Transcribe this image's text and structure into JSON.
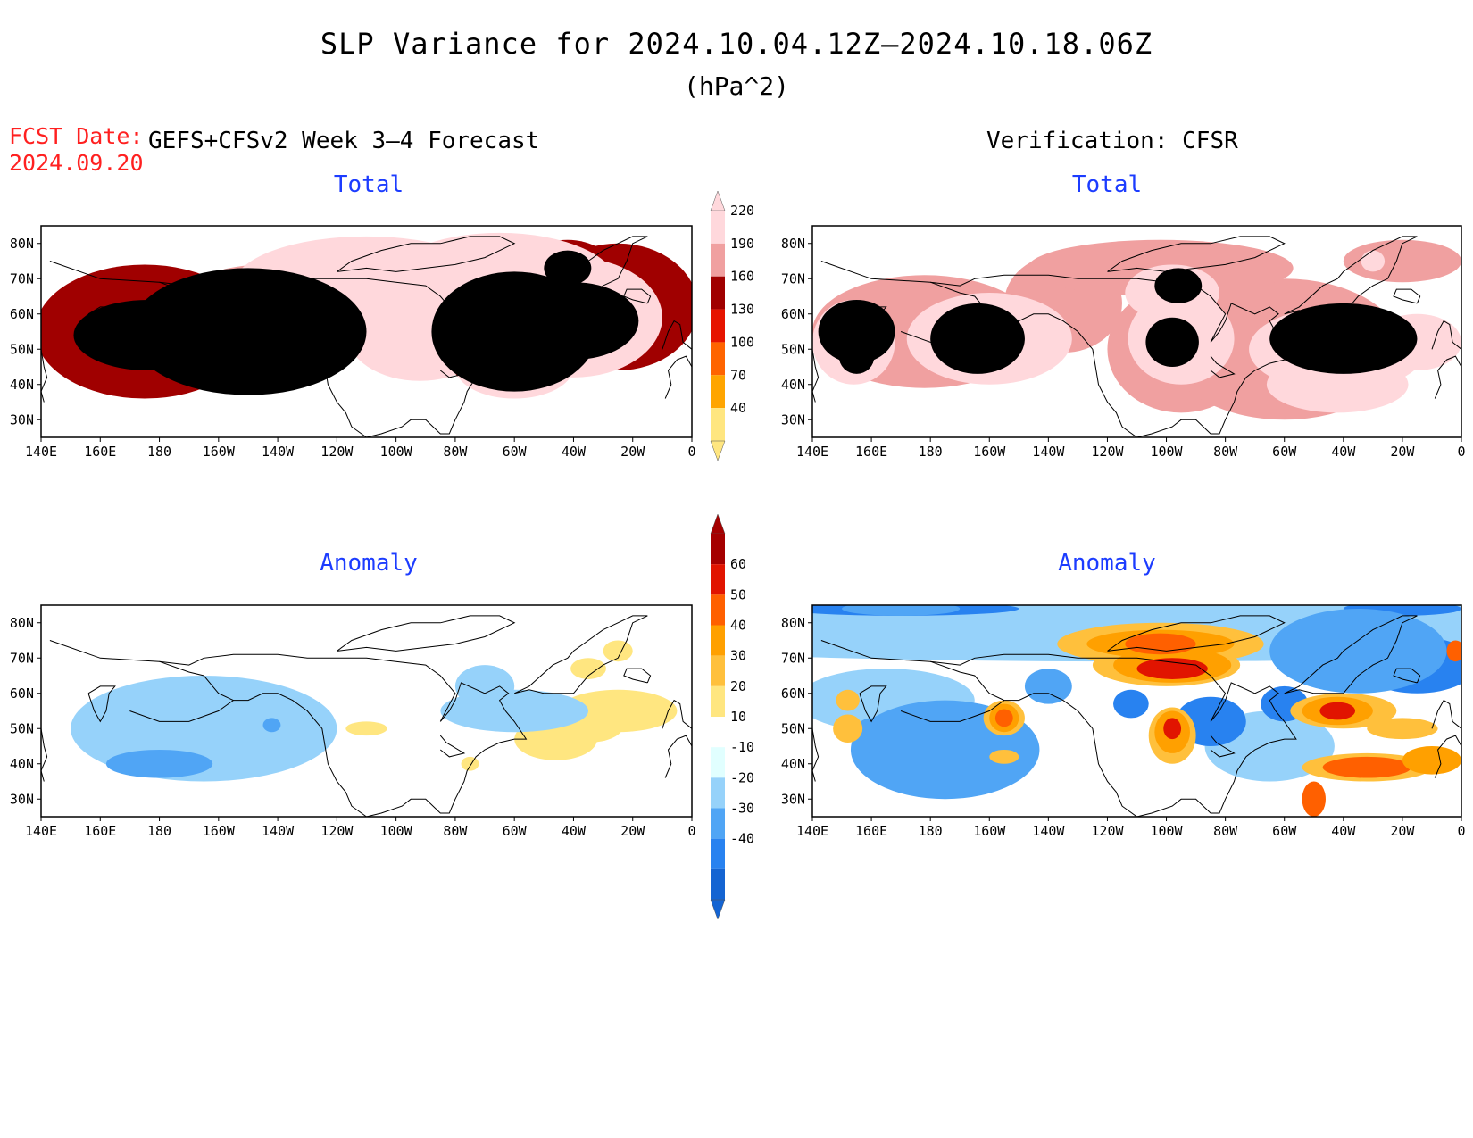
{
  "header": {
    "title": "SLP Variance for 2024.10.04.12Z–2024.10.18.06Z",
    "units": "(hPa^2)",
    "fcst_label": "FCST Date:",
    "fcst_date": "2024.09.20",
    "forecast_heading": "GEFS+CFSv2 Week 3–4 Forecast",
    "verification_heading": "Verification: CFSR"
  },
  "panels": [
    {
      "id": "forecast-total",
      "title": "Total"
    },
    {
      "id": "verification-total",
      "title": "Total"
    },
    {
      "id": "forecast-anomaly",
      "title": "Anomaly"
    },
    {
      "id": "verification-anomaly",
      "title": "Anomaly"
    }
  ],
  "axes": {
    "lat_labels": [
      "80N",
      "70N",
      "60N",
      "50N",
      "40N",
      "30N"
    ],
    "lat_values": [
      80,
      70,
      60,
      50,
      40,
      30
    ],
    "lat_range": [
      25,
      85
    ],
    "lon_labels": [
      "140E",
      "160E",
      "180",
      "160W",
      "140W",
      "120W",
      "100W",
      "80W",
      "60W",
      "40W",
      "20W",
      "0"
    ],
    "lon_values": [
      140,
      160,
      180,
      200,
      220,
      240,
      260,
      280,
      300,
      320,
      340,
      360
    ],
    "lon_range": [
      140,
      360
    ]
  },
  "colorbars": {
    "total": {
      "levels": [
        "40",
        "70",
        "100",
        "130",
        "160",
        "190",
        "220"
      ],
      "colors": [
        "#ffe680",
        "#ffa500",
        "#ff6400",
        "#e61400",
        "#a00000",
        "#f0a0a0",
        "#ffd8dc"
      ],
      "extends": "both"
    },
    "anomaly": {
      "levels": [
        "-40",
        "-30",
        "-20",
        "-10",
        "10",
        "20",
        "30",
        "40",
        "50",
        "60"
      ],
      "colors": [
        "#1464d2",
        "#2882f0",
        "#50a5f5",
        "#96d2fa",
        "#e1ffff",
        "#ffffff",
        "#ffe680",
        "#ffc03c",
        "#ffa000",
        "#ff6000",
        "#e11400",
        "#a50000"
      ],
      "extends": "both"
    }
  },
  "chart_data": [
    {
      "type": "heatmap",
      "panel": "forecast-total",
      "quantity": "SLP variance",
      "units": "hPa^2",
      "xlim": [
        140,
        360
      ],
      "ylim": [
        25,
        85
      ],
      "features": [
        {
          "lon": 177,
          "lat": 54,
          "rx": 25,
          "ry": 8,
          "level": 1
        },
        {
          "lon": 177,
          "lat": 53,
          "rx": 23,
          "ry": 12,
          "level": 2
        },
        {
          "lon": 180,
          "lat": 54,
          "rx": 29,
          "ry": 16,
          "level": 3
        },
        {
          "lon": 175,
          "lat": 55,
          "rx": 37,
          "ry": 19,
          "level": 4
        },
        {
          "lon": 215,
          "lat": 56,
          "rx": 35,
          "ry": 18,
          "level": 5
        },
        {
          "lon": 245,
          "lat": 62,
          "rx": 35,
          "ry": 14,
          "level": 5
        },
        {
          "lon": 265,
          "lat": 57,
          "rx": 25,
          "ry": 13,
          "level": 4
        },
        {
          "lon": 300,
          "lat": 55,
          "rx": 27,
          "ry": 18,
          "level": 4
        },
        {
          "lon": 335,
          "lat": 62,
          "rx": 27,
          "ry": 18,
          "level": 4
        },
        {
          "lon": 318,
          "lat": 73,
          "rx": 15,
          "ry": 8,
          "level": 4
        },
        {
          "lon": 250,
          "lat": 68,
          "rx": 45,
          "ry": 14,
          "level": 6
        },
        {
          "lon": 295,
          "lat": 68,
          "rx": 40,
          "ry": 15,
          "level": 6
        },
        {
          "lon": 320,
          "lat": 59,
          "rx": 30,
          "ry": 17,
          "level": 6
        },
        {
          "lon": 268,
          "lat": 55,
          "rx": 25,
          "ry": 14,
          "level": 6
        },
        {
          "lon": 300,
          "lat": 45,
          "rx": 20,
          "ry": 9,
          "level": 6
        },
        {
          "lon": 210,
          "lat": 55,
          "rx": 40,
          "ry": 18,
          "level": 7
        },
        {
          "lon": 300,
          "lat": 55,
          "rx": 28,
          "ry": 17,
          "level": 7
        },
        {
          "lon": 320,
          "lat": 58,
          "rx": 22,
          "ry": 11,
          "level": 7
        },
        {
          "lon": 176,
          "lat": 54,
          "rx": 25,
          "ry": 10,
          "level": 8
        },
        {
          "lon": 318,
          "lat": 73,
          "rx": 8,
          "ry": 5,
          "level": 8
        },
        {
          "lon": 318,
          "lat": 73,
          "rx": 4,
          "ry": 3,
          "level": 9
        }
      ]
    },
    {
      "type": "heatmap",
      "panel": "verification-total",
      "quantity": "SLP variance",
      "units": "hPa^2",
      "xlim": [
        140,
        360
      ],
      "ylim": [
        25,
        85
      ],
      "features": [
        {
          "lon": 178,
          "lat": 55,
          "rx": 38,
          "ry": 16,
          "level": 5
        },
        {
          "lon": 225,
          "lat": 63,
          "rx": 20,
          "ry": 14,
          "level": 5
        },
        {
          "lon": 265,
          "lat": 50,
          "rx": 25,
          "ry": 18,
          "level": 5
        },
        {
          "lon": 300,
          "lat": 50,
          "rx": 40,
          "ry": 20,
          "level": 5
        },
        {
          "lon": 258,
          "lat": 73,
          "rx": 45,
          "ry": 8,
          "level": 5
        },
        {
          "lon": 340,
          "lat": 75,
          "rx": 20,
          "ry": 6,
          "level": 5
        },
        {
          "lon": 154,
          "lat": 52,
          "rx": 14,
          "ry": 12,
          "level": 6
        },
        {
          "lon": 200,
          "lat": 53,
          "rx": 28,
          "ry": 13,
          "level": 6
        },
        {
          "lon": 265,
          "lat": 53,
          "rx": 18,
          "ry": 13,
          "level": 6
        },
        {
          "lon": 262,
          "lat": 66,
          "rx": 16,
          "ry": 8,
          "level": 6
        },
        {
          "lon": 318,
          "lat": 50,
          "rx": 30,
          "ry": 12,
          "level": 6
        },
        {
          "lon": 318,
          "lat": 40,
          "rx": 24,
          "ry": 8,
          "level": 6
        },
        {
          "lon": 345,
          "lat": 52,
          "rx": 15,
          "ry": 8,
          "level": 6
        },
        {
          "lon": 330,
          "lat": 75,
          "rx": 4,
          "ry": 3,
          "level": 6
        },
        {
          "lon": 155,
          "lat": 55,
          "rx": 13,
          "ry": 9,
          "level": 7
        },
        {
          "lon": 196,
          "lat": 53,
          "rx": 16,
          "ry": 10,
          "level": 7
        },
        {
          "lon": 262,
          "lat": 52,
          "rx": 9,
          "ry": 7,
          "level": 7
        },
        {
          "lon": 320,
          "lat": 53,
          "rx": 25,
          "ry": 10,
          "level": 7
        },
        {
          "lon": 264,
          "lat": 68,
          "rx": 8,
          "ry": 5,
          "level": 7
        },
        {
          "lon": 155,
          "lat": 48,
          "rx": 6,
          "ry": 5,
          "level": 8
        },
        {
          "lon": 196,
          "lat": 53,
          "rx": 8,
          "ry": 6,
          "level": 8
        },
        {
          "lon": 261,
          "lat": 51,
          "rx": 4,
          "ry": 4,
          "level": 8
        },
        {
          "lon": 318,
          "lat": 54,
          "rx": 13,
          "ry": 6,
          "level": 8
        },
        {
          "lon": 316,
          "lat": 53,
          "rx": 5,
          "ry": 2,
          "level": 9
        },
        {
          "lon": 316,
          "lat": 53,
          "rx": 3,
          "ry": 1.5,
          "level": 10
        }
      ]
    },
    {
      "type": "heatmap",
      "panel": "forecast-anomaly",
      "quantity": "SLP variance anomaly",
      "units": "hPa^2",
      "xlim": [
        140,
        360
      ],
      "ylim": [
        25,
        85
      ],
      "features": [
        {
          "lon": 178,
          "lat": 55,
          "rx": 12,
          "ry": 5,
          "level": 6
        },
        {
          "lon": 176,
          "lat": 55,
          "rx": 8,
          "ry": 3.5,
          "level": 7
        },
        {
          "lon": 176,
          "lat": 55,
          "rx": 4,
          "ry": 2,
          "level": 8
        },
        {
          "lon": 335,
          "lat": 55,
          "rx": 20,
          "ry": 6,
          "level": 6
        },
        {
          "lon": 314,
          "lat": 47,
          "rx": 14,
          "ry": 6,
          "level": 6
        },
        {
          "lon": 325,
          "lat": 51,
          "rx": 12,
          "ry": 5,
          "level": 6
        },
        {
          "lon": 325,
          "lat": 67,
          "rx": 6,
          "ry": 3,
          "level": 6
        },
        {
          "lon": 335,
          "lat": 72,
          "rx": 5,
          "ry": 3,
          "level": 6
        },
        {
          "lon": 250,
          "lat": 50,
          "rx": 7,
          "ry": 2,
          "level": 6
        },
        {
          "lon": 285,
          "lat": 40,
          "rx": 3,
          "ry": 2,
          "level": 6
        },
        {
          "lon": 195,
          "lat": 50,
          "rx": 45,
          "ry": 15,
          "level": 3
        },
        {
          "lon": 290,
          "lat": 62,
          "rx": 10,
          "ry": 6,
          "level": 3
        },
        {
          "lon": 300,
          "lat": 55,
          "rx": 25,
          "ry": 6,
          "level": 3
        },
        {
          "lon": 180,
          "lat": 40,
          "rx": 18,
          "ry": 4,
          "level": 2
        },
        {
          "lon": 218,
          "lat": 51,
          "rx": 3,
          "ry": 2,
          "level": 2
        }
      ]
    },
    {
      "type": "heatmap",
      "panel": "verification-anomaly",
      "quantity": "SLP variance anomaly",
      "units": "hPa^2",
      "xlim": [
        140,
        360
      ],
      "ylim": [
        25,
        85
      ],
      "features": [
        {
          "lon": 250,
          "lat": 78,
          "rx": 220,
          "ry": 9,
          "level": 3
        },
        {
          "lon": 165,
          "lat": 58,
          "rx": 30,
          "ry": 9,
          "level": 3
        },
        {
          "lon": 295,
          "lat": 45,
          "rx": 22,
          "ry": 10,
          "level": 3
        },
        {
          "lon": 170,
          "lat": 84,
          "rx": 40,
          "ry": 2,
          "level": 1
        },
        {
          "lon": 170,
          "lat": 84,
          "rx": 20,
          "ry": 2,
          "level": 2
        },
        {
          "lon": 340,
          "lat": 84,
          "rx": 20,
          "ry": 2,
          "level": 1
        },
        {
          "lon": 325,
          "lat": 70,
          "rx": 20,
          "ry": 6,
          "level": 0
        },
        {
          "lon": 345,
          "lat": 68,
          "rx": 15,
          "ry": 5,
          "level": 0
        },
        {
          "lon": 325,
          "lat": 70,
          "rx": 26,
          "ry": 9,
          "level": 1
        },
        {
          "lon": 345,
          "lat": 68,
          "rx": 20,
          "ry": 8,
          "level": 1
        },
        {
          "lon": 325,
          "lat": 72,
          "rx": 30,
          "ry": 12,
          "level": 2
        },
        {
          "lon": 183,
          "lat": 44,
          "rx": 23,
          "ry": 10,
          "level": 0
        },
        {
          "lon": 183,
          "lat": 44,
          "rx": 28,
          "ry": 12,
          "level": 1
        },
        {
          "lon": 185,
          "lat": 44,
          "rx": 32,
          "ry": 14,
          "level": 2
        },
        {
          "lon": 275,
          "lat": 52,
          "rx": 8,
          "ry": 5,
          "level": 0
        },
        {
          "lon": 275,
          "lat": 52,
          "rx": 12,
          "ry": 7,
          "level": 1
        },
        {
          "lon": 248,
          "lat": 57,
          "rx": 6,
          "ry": 4,
          "level": 1
        },
        {
          "lon": 300,
          "lat": 57,
          "rx": 8,
          "ry": 5,
          "level": 1
        },
        {
          "lon": 220,
          "lat": 62,
          "rx": 8,
          "ry": 5,
          "level": 2
        },
        {
          "lon": 160,
          "lat": 48,
          "rx": 6,
          "ry": 5,
          "level": 2
        },
        {
          "lon": 258,
          "lat": 74,
          "rx": 35,
          "ry": 6,
          "level": 7
        },
        {
          "lon": 260,
          "lat": 68,
          "rx": 25,
          "ry": 6,
          "level": 7
        },
        {
          "lon": 258,
          "lat": 74,
          "rx": 25,
          "ry": 4,
          "level": 8
        },
        {
          "lon": 262,
          "lat": 68,
          "rx": 20,
          "ry": 5,
          "level": 8
        },
        {
          "lon": 258,
          "lat": 74,
          "rx": 12,
          "ry": 3,
          "level": 9
        },
        {
          "lon": 262,
          "lat": 67,
          "rx": 12,
          "ry": 3,
          "level": 10
        },
        {
          "lon": 205,
          "lat": 53,
          "rx": 7,
          "ry": 5,
          "level": 7
        },
        {
          "lon": 205,
          "lat": 53,
          "rx": 5,
          "ry": 4,
          "level": 8
        },
        {
          "lon": 205,
          "lat": 53,
          "rx": 3,
          "ry": 2.5,
          "level": 9
        },
        {
          "lon": 205,
          "lat": 42,
          "rx": 5,
          "ry": 2,
          "level": 7
        },
        {
          "lon": 262,
          "lat": 48,
          "rx": 8,
          "ry": 8,
          "level": 7
        },
        {
          "lon": 262,
          "lat": 49,
          "rx": 6,
          "ry": 6,
          "level": 8
        },
        {
          "lon": 262,
          "lat": 50,
          "rx": 3,
          "ry": 3,
          "level": 10
        },
        {
          "lon": 320,
          "lat": 55,
          "rx": 18,
          "ry": 5,
          "level": 7
        },
        {
          "lon": 318,
          "lat": 55,
          "rx": 12,
          "ry": 4,
          "level": 8
        },
        {
          "lon": 318,
          "lat": 55,
          "rx": 6,
          "ry": 2.5,
          "level": 10
        },
        {
          "lon": 340,
          "lat": 50,
          "rx": 12,
          "ry": 3,
          "level": 7
        },
        {
          "lon": 328,
          "lat": 39,
          "rx": 22,
          "ry": 4,
          "level": 7
        },
        {
          "lon": 328,
          "lat": 39,
          "rx": 15,
          "ry": 3,
          "level": 9
        },
        {
          "lon": 350,
          "lat": 41,
          "rx": 10,
          "ry": 4,
          "level": 8
        },
        {
          "lon": 310,
          "lat": 30,
          "rx": 4,
          "ry": 5,
          "level": 9
        },
        {
          "lon": 358,
          "lat": 72,
          "rx": 3,
          "ry": 3,
          "level": 9
        },
        {
          "lon": 152,
          "lat": 50,
          "rx": 5,
          "ry": 4,
          "level": 7
        },
        {
          "lon": 152,
          "lat": 58,
          "rx": 4,
          "ry": 3,
          "level": 7
        }
      ]
    }
  ]
}
